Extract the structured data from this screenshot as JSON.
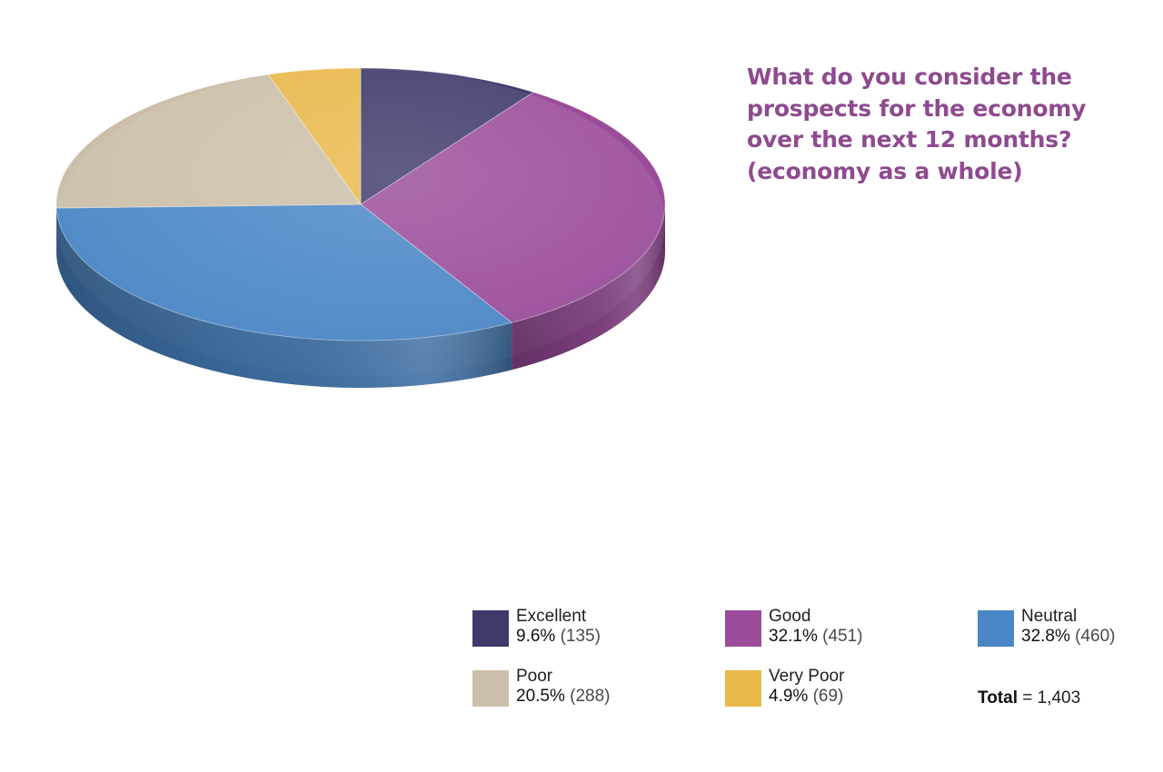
{
  "chart_data": {
    "type": "pie",
    "title": "What do you consider the prospects for the economy over the next 12 months? (economy as a whole)",
    "title_lines": [
      "What do you consider the",
      "prospects for the economy",
      "over the next 12 months?",
      "(economy as a whole)"
    ],
    "slices": [
      {
        "label": "Excellent",
        "percent": 9.6,
        "count": 135,
        "percent_text": "9.6%",
        "count_text": "(135)",
        "color": "#3e3a6b"
      },
      {
        "label": "Good",
        "percent": 32.1,
        "count": 451,
        "percent_text": "32.1%",
        "count_text": "(451)",
        "color": "#9a4c9b"
      },
      {
        "label": "Neutral",
        "percent": 32.8,
        "count": 460,
        "percent_text": "32.8%",
        "count_text": "(460)",
        "color": "#4a86c5"
      },
      {
        "label": "Poor",
        "percent": 20.5,
        "count": 288,
        "percent_text": "20.5%",
        "count_text": "(288)",
        "color": "#cbbfa9"
      },
      {
        "label": "Very Poor",
        "percent": 4.9,
        "count": 69,
        "percent_text": "4.9%",
        "count_text": "(69)",
        "color": "#e8b84a"
      }
    ],
    "total_label": "Total",
    "total_value": "= 1,403",
    "legend_position": "bottom-right",
    "style": "3d"
  }
}
